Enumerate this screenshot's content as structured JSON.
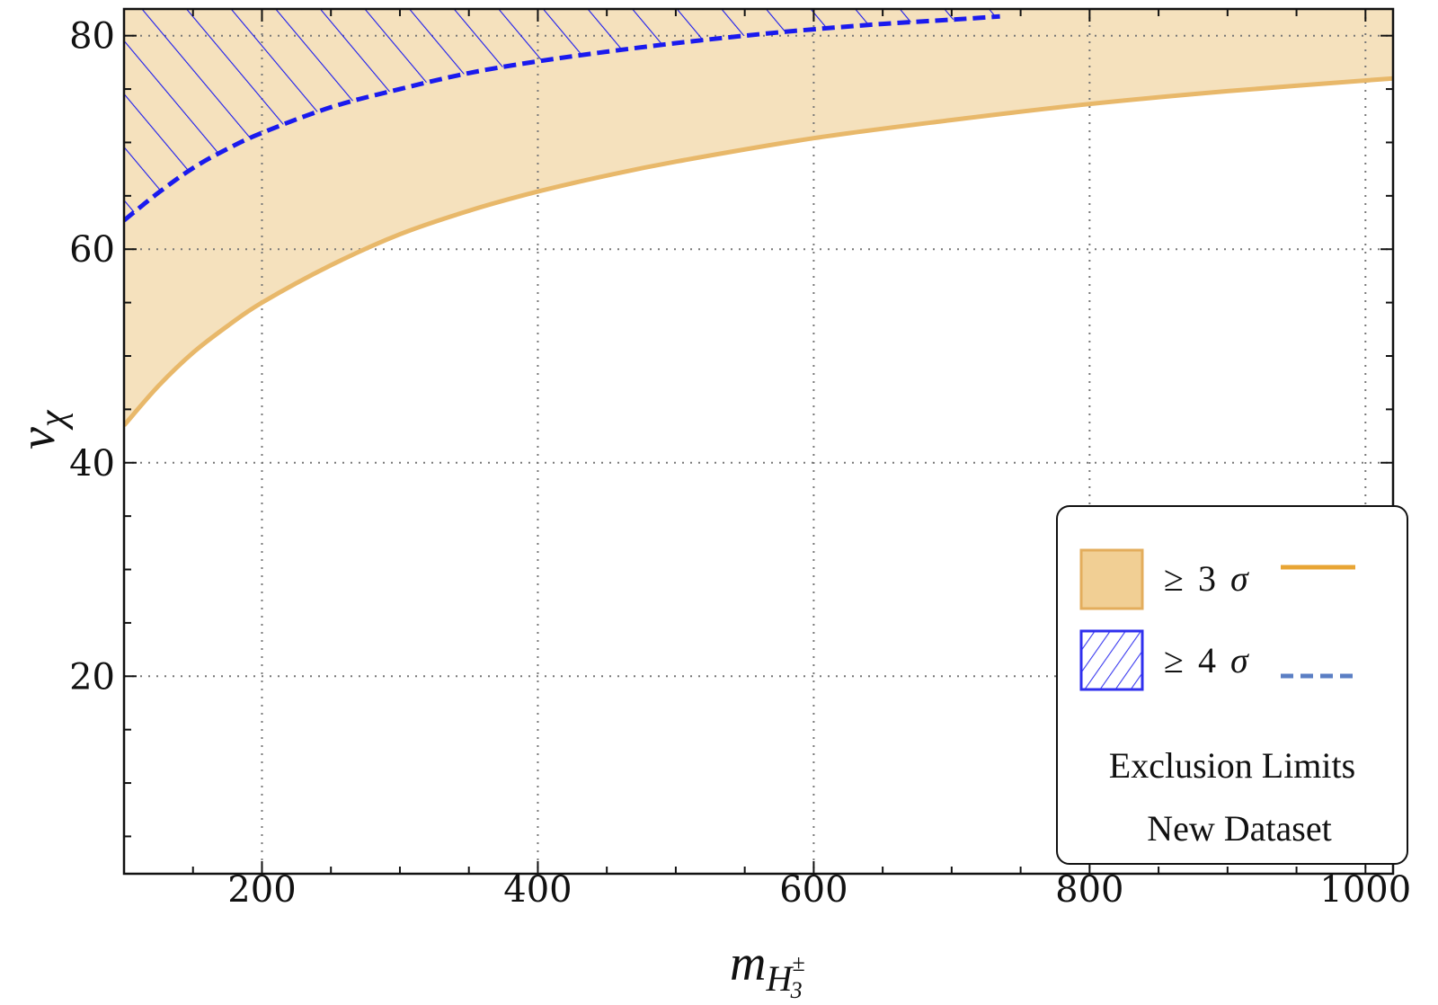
{
  "chart_data": {
    "type": "area",
    "xlabel": {
      "main": "m",
      "sub": "H",
      "sub_sup": "±",
      "sub_sub": "3"
    },
    "ylabel": {
      "main": "v",
      "sub": "χ"
    },
    "xlim": [
      100,
      1020
    ],
    "ylim": [
      1.5,
      82.5
    ],
    "xticks": [
      200,
      400,
      600,
      800,
      1000
    ],
    "yticks": [
      20,
      40,
      60,
      80
    ],
    "grid": true,
    "legend_position": "bottom-right",
    "legend": {
      "items": [
        {
          "symbol": "≥",
          "number": "3",
          "greek": "σ",
          "swatch": "filled",
          "line": "solid",
          "color": "#e8b86a",
          "fill_color": "#f1cf94"
        },
        {
          "symbol": "≥",
          "number": "4",
          "greek": "σ",
          "swatch": "hatched",
          "line": "dashed",
          "color": "#1a1aee",
          "line_color": "#5b7fc4"
        }
      ],
      "caption": [
        "Exclusion Limits",
        "New Dataset"
      ]
    },
    "series": [
      {
        "name": "≥ 3 σ",
        "style": "filled-above-solid-line",
        "color": "#e8b86a",
        "fill_color": "#f5e1bd",
        "x": [
          100,
          125,
          150,
          175,
          200,
          250,
          300,
          350,
          400,
          450,
          500,
          600,
          700,
          800,
          900,
          1020
        ],
        "y": [
          43.5,
          47.2,
          50.3,
          52.8,
          55.0,
          58.5,
          61.4,
          63.6,
          65.4,
          66.9,
          68.2,
          70.4,
          72.1,
          73.6,
          74.8,
          76.0
        ]
      },
      {
        "name": "≥ 4 σ",
        "style": "hatched-above-dashed-line",
        "color": "#1a1aee",
        "x": [
          100,
          125,
          150,
          175,
          200,
          250,
          300,
          350,
          400,
          450,
          500,
          550,
          600,
          650,
          700,
          735
        ],
        "y": [
          62.7,
          65.3,
          67.6,
          69.4,
          70.9,
          73.3,
          75.0,
          76.5,
          77.6,
          78.5,
          79.3,
          80.0,
          80.6,
          81.1,
          81.5,
          81.8
        ]
      }
    ]
  }
}
